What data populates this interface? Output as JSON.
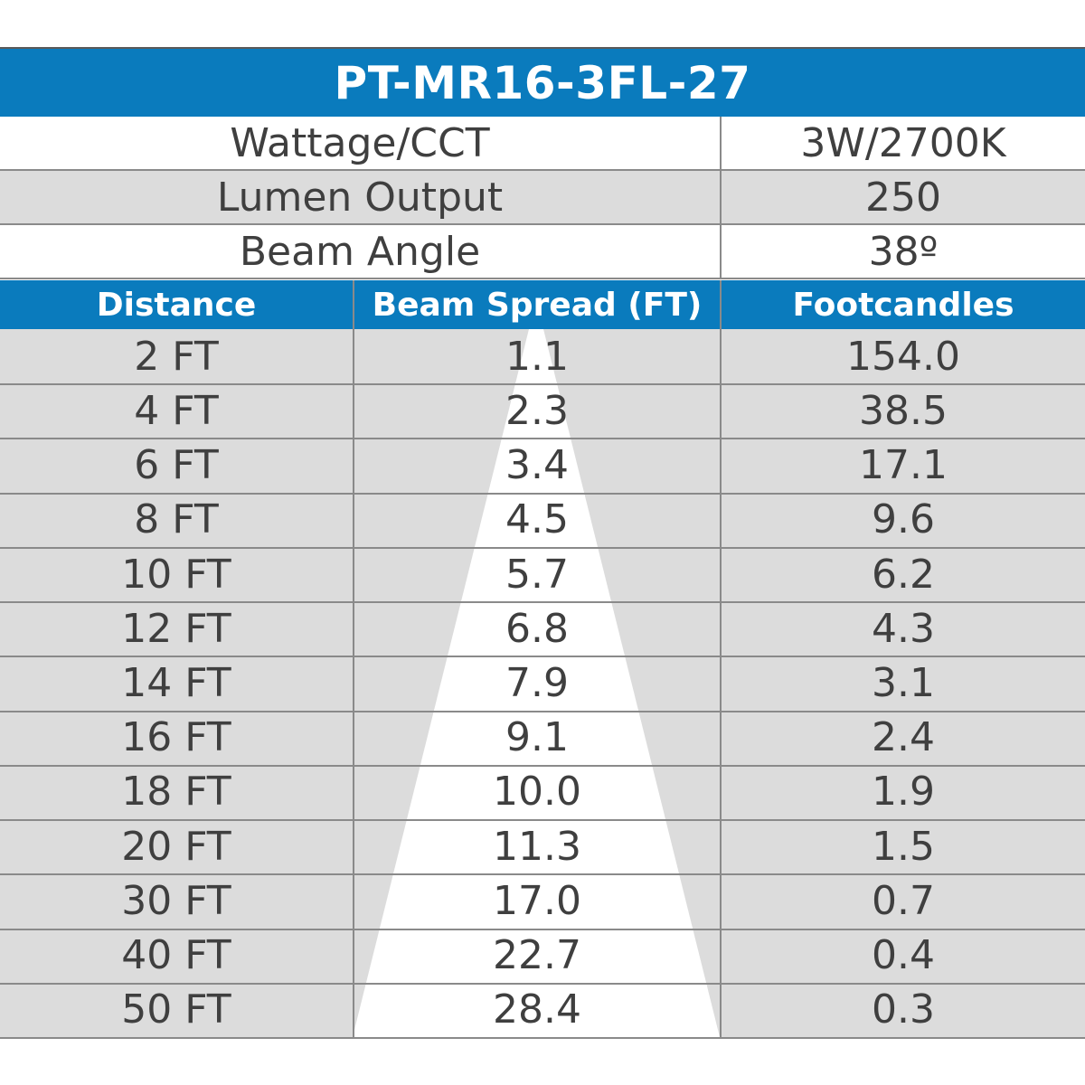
{
  "title": "PT-MR16-3FL-27",
  "specs": [
    {
      "label": "Wattage/CCT",
      "value": "3W/2700K"
    },
    {
      "label": "Lumen Output",
      "value": "250"
    },
    {
      "label": "Beam Angle",
      "value": "38º"
    }
  ],
  "columns": [
    "Distance",
    "Beam Spread (FT)",
    "Footcandles"
  ],
  "colors": {
    "header_blue": "#0a7bbd",
    "row_gray": "#dcdcdc",
    "beam_white": "#ffffff",
    "text": "#3f3f3f"
  },
  "chart_data": {
    "type": "table",
    "columns": [
      "Distance",
      "Beam Spread (FT)",
      "Footcandles"
    ],
    "rows": [
      [
        "2 FT",
        "1.1",
        "154.0"
      ],
      [
        "4 FT",
        "2.3",
        "38.5"
      ],
      [
        "6 FT",
        "3.4",
        "17.1"
      ],
      [
        "8 FT",
        "4.5",
        "9.6"
      ],
      [
        "10 FT",
        "5.7",
        "6.2"
      ],
      [
        "12 FT",
        "6.8",
        "4.3"
      ],
      [
        "14 FT",
        "7.9",
        "3.1"
      ],
      [
        "16 FT",
        "9.1",
        "2.4"
      ],
      [
        "18 FT",
        "10.0",
        "1.9"
      ],
      [
        "20 FT",
        "11.3",
        "1.5"
      ],
      [
        "30 FT",
        "17.0",
        "0.7"
      ],
      [
        "40 FT",
        "22.7",
        "0.4"
      ],
      [
        "50 FT",
        "28.4",
        "0.3"
      ]
    ]
  }
}
